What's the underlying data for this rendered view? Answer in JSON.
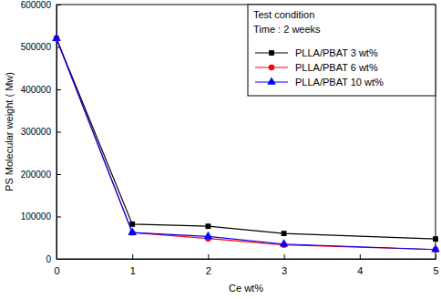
{
  "chart_data": {
    "type": "line",
    "x_label": "Ce wt%",
    "y_label": "PS Molecular weight ( Mw)",
    "annotations": [
      "Test condition",
      "Time : 2 weeks"
    ],
    "x": [
      0,
      1,
      2,
      3,
      5
    ],
    "series": [
      {
        "name": "PLLA/PBAT 3 wt%",
        "color": "#000000",
        "marker": "square",
        "line_style": "solid",
        "values": [
          520000,
          82000,
          77000,
          60000,
          47000
        ]
      },
      {
        "name": "PLLA/PBAT 6 wt%",
        "color": "#ff0000",
        "marker": "circle",
        "line_style": "solid",
        "values": [
          520000,
          62000,
          48000,
          33000,
          22000
        ]
      },
      {
        "name": "PLLA/PBAT 10 wt%",
        "color": "#0000ff",
        "marker": "triangle",
        "line_style": "solid",
        "values": [
          520000,
          62000,
          53000,
          35000,
          22000
        ]
      }
    ],
    "xlim": [
      0,
      5
    ],
    "xticks": [
      0,
      1,
      2,
      3,
      4,
      5
    ],
    "ylim": [
      0,
      600000
    ],
    "yticks": [
      0,
      100000,
      200000,
      300000,
      400000,
      500000,
      600000
    ],
    "grid": false,
    "legend": "upper right"
  }
}
